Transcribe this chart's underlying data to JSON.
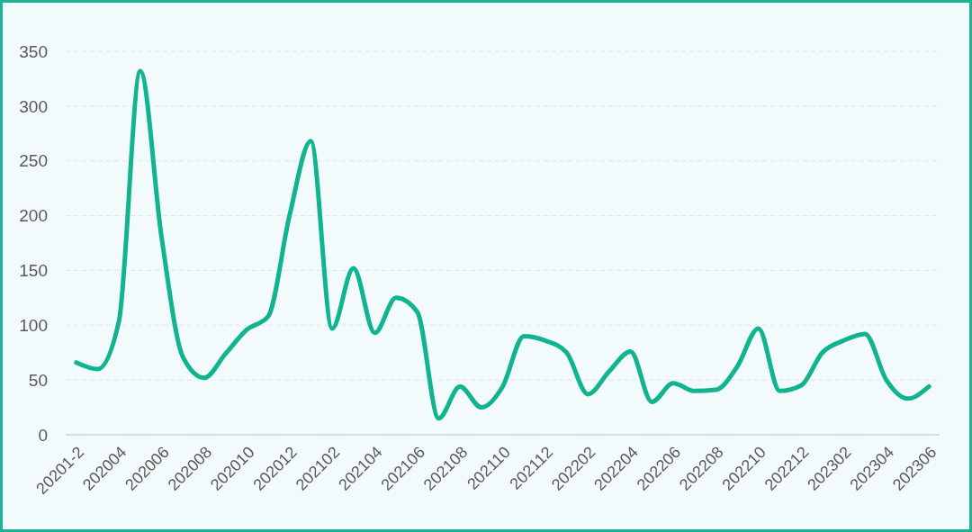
{
  "chart_data": {
    "type": "line",
    "categories": [
      "20201-2",
      null,
      "202004",
      null,
      "202006",
      null,
      "202008",
      null,
      "202010",
      null,
      "202012",
      null,
      "202102",
      null,
      "202104",
      null,
      "202106",
      null,
      "202108",
      null,
      "202110",
      null,
      "202112",
      null,
      "202202",
      null,
      "202204",
      null,
      "202206",
      null,
      "202208",
      null,
      "202210",
      null,
      "202212",
      null,
      "202302",
      null,
      "202304",
      null,
      "202306"
    ],
    "values": [
      66,
      60,
      104,
      332,
      180,
      71,
      52,
      74,
      96,
      108,
      200,
      268,
      97,
      152,
      93,
      125,
      112,
      15,
      44,
      25,
      44,
      90,
      86,
      75,
      37,
      58,
      76,
      30,
      47,
      40,
      41,
      62,
      97,
      40,
      45,
      75,
      86,
      92,
      50,
      33,
      44
    ],
    "color": "#12b48f",
    "ylim": [
      0,
      350
    ],
    "yticks": [
      0,
      50,
      100,
      150,
      200,
      250,
      300,
      350
    ],
    "grid": "y"
  }
}
